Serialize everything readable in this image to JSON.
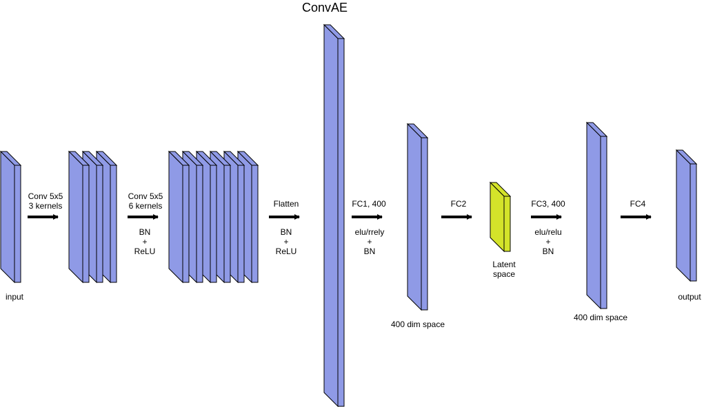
{
  "title": "ConvAE",
  "colors": {
    "layer": "#8f9ae6",
    "latent": "#d4e32a",
    "stroke": "#000000"
  },
  "labels": {
    "input": "input",
    "output": "output",
    "latent": [
      "Latent",
      "space"
    ],
    "dim_left": "400 dim space",
    "dim_right": "400 dim space"
  },
  "arrows": [
    {
      "top": [
        "Conv 5x5",
        "3 kernels"
      ],
      "bottom": []
    },
    {
      "top": [
        "Conv 5x5",
        "6 kernels"
      ],
      "bottom": [
        "BN",
        "+",
        "ReLU"
      ]
    },
    {
      "top": [
        "Flatten"
      ],
      "bottom": [
        "BN",
        "+",
        "ReLU"
      ]
    },
    {
      "top": [
        "FC1, 400"
      ],
      "bottom": [
        "elu/rrely",
        "+",
        "BN"
      ]
    },
    {
      "top": [
        "FC2"
      ],
      "bottom": []
    },
    {
      "top": [
        "FC3, 400"
      ],
      "bottom": [
        "elu/relu",
        "+",
        "BN"
      ]
    },
    {
      "top": [
        "FC4"
      ],
      "bottom": []
    }
  ]
}
